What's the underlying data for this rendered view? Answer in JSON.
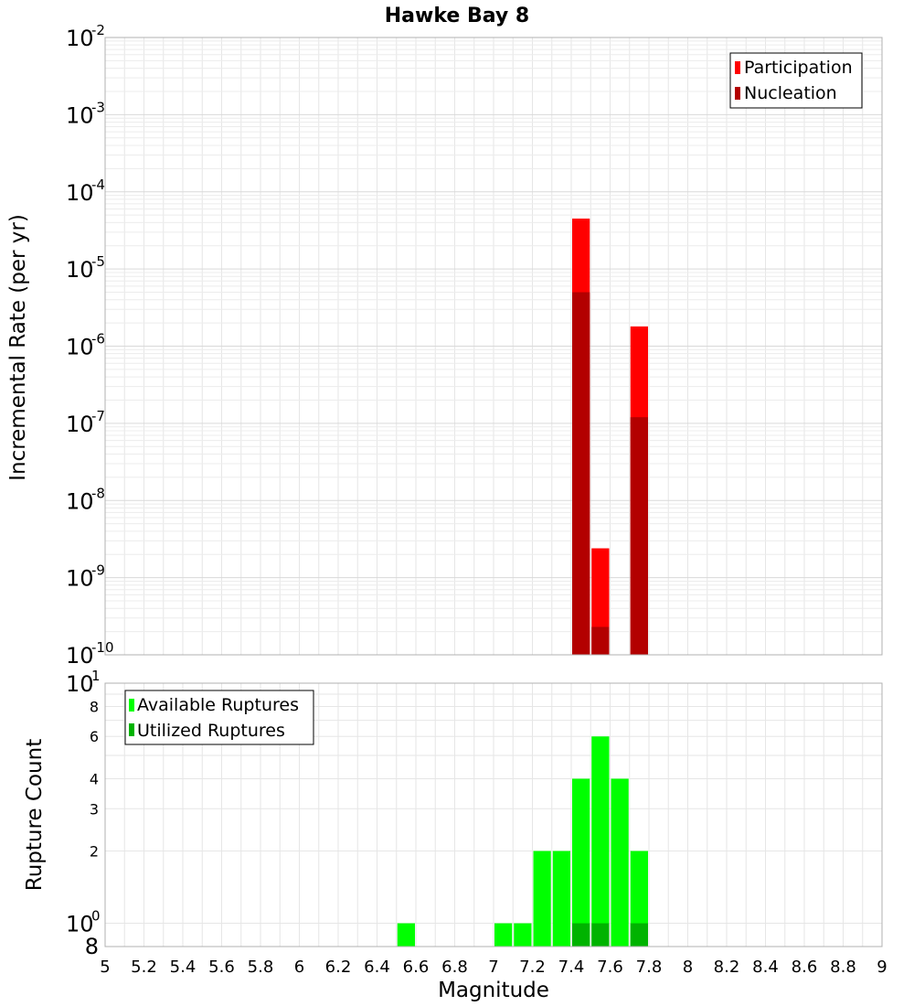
{
  "chart_data": [
    {
      "type": "bar",
      "title": "Hawke Bay 8",
      "ylabel": "Incremental Rate (per yr)",
      "xlabel": "",
      "yscale": "log",
      "ylim": [
        1e-10,
        0.01
      ],
      "xlim": [
        5,
        9
      ],
      "bin_width": 0.1,
      "y_ticks": [
        {
          "base": "10",
          "exp": "-10"
        },
        {
          "base": "10",
          "exp": "-9"
        },
        {
          "base": "10",
          "exp": "-8"
        },
        {
          "base": "10",
          "exp": "-7"
        },
        {
          "base": "10",
          "exp": "-6"
        },
        {
          "base": "10",
          "exp": "-5"
        },
        {
          "base": "10",
          "exp": "-4"
        },
        {
          "base": "10",
          "exp": "-3"
        },
        {
          "base": "10",
          "exp": "-2"
        }
      ],
      "legend_position": "top-right",
      "series": [
        {
          "name": "Participation",
          "color": "#ff0000",
          "points": [
            {
              "x": 7.45,
              "y": 4.5e-05
            },
            {
              "x": 7.55,
              "y": 2.4e-09
            },
            {
              "x": 7.75,
              "y": 1.8e-06
            }
          ]
        },
        {
          "name": "Nucleation",
          "color": "#b30000",
          "points": [
            {
              "x": 7.45,
              "y": 5e-06
            },
            {
              "x": 7.55,
              "y": 2.3e-10
            },
            {
              "x": 7.75,
              "y": 1.2e-07
            }
          ]
        }
      ]
    },
    {
      "type": "bar",
      "title": "",
      "ylabel": "Rupture Count",
      "xlabel": "Magnitude",
      "yscale": "log",
      "ylim": [
        0.8,
        10
      ],
      "xlim": [
        5,
        9
      ],
      "bin_width": 0.1,
      "y_ticks_major": [
        {
          "value": 1,
          "base": "10",
          "exp": "0"
        },
        {
          "value": 10,
          "base": "10",
          "exp": "1"
        }
      ],
      "y_ticks_minor": [
        {
          "value": 2,
          "label": "2"
        },
        {
          "value": 3,
          "label": "3"
        },
        {
          "value": 4,
          "label": "4"
        },
        {
          "value": 6,
          "label": "6"
        },
        {
          "value": 8,
          "label": "8"
        }
      ],
      "y_bottom_label": "8",
      "x_ticks": [
        "5",
        "5.2",
        "5.4",
        "5.6",
        "5.8",
        "6",
        "6.2",
        "6.4",
        "6.6",
        "6.8",
        "7",
        "7.2",
        "7.4",
        "7.6",
        "7.8",
        "8",
        "8.2",
        "8.4",
        "8.6",
        "8.8",
        "9"
      ],
      "legend_position": "top-left",
      "series": [
        {
          "name": "Available Ruptures",
          "color": "#00ff00",
          "points": [
            {
              "x": 6.55,
              "y": 1
            },
            {
              "x": 7.05,
              "y": 1
            },
            {
              "x": 7.15,
              "y": 1
            },
            {
              "x": 7.25,
              "y": 2
            },
            {
              "x": 7.35,
              "y": 2
            },
            {
              "x": 7.45,
              "y": 4
            },
            {
              "x": 7.55,
              "y": 6
            },
            {
              "x": 7.65,
              "y": 4
            },
            {
              "x": 7.75,
              "y": 2
            }
          ]
        },
        {
          "name": "Utilized Ruptures",
          "color": "#00b300",
          "points": [
            {
              "x": 7.45,
              "y": 1
            },
            {
              "x": 7.55,
              "y": 1
            },
            {
              "x": 7.75,
              "y": 1
            }
          ]
        }
      ]
    }
  ]
}
